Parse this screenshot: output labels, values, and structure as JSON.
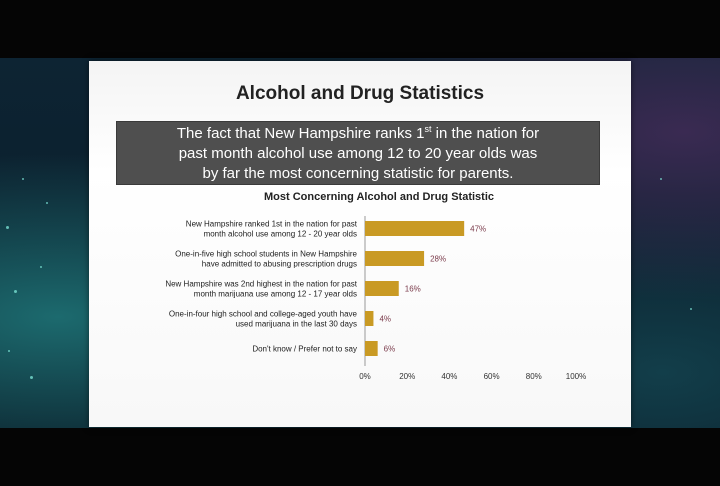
{
  "slide": {
    "title": "Alcohol and Drug Statistics",
    "callout": {
      "part1": "The fact that New Hampshire ranks 1",
      "superscript": "st",
      "part2": " in the nation for",
      "line2": "past month alcohol use among 12 to 20 year olds was",
      "line3": "by far the most concerning statistic for parents."
    }
  },
  "chart_data": {
    "type": "bar",
    "orientation": "horizontal",
    "title": "Most Concerning Alcohol and Drug Statistic",
    "categories": [
      [
        "New Hampshire ranked 1st in the nation for past",
        "month alcohol use among 12 - 20 year olds"
      ],
      [
        "One-in-five high school students in New Hampshire",
        "have admitted to abusing prescription drugs"
      ],
      [
        "New Hampshire was 2nd highest in the nation for past",
        "month marijuana use among 12 - 17 year olds"
      ],
      [
        "One-in-four high school and college-aged youth have",
        "used marijuana in the last 30 days"
      ],
      [
        "Don't know / Prefer not to say"
      ]
    ],
    "values": [
      47,
      28,
      16,
      4,
      6
    ],
    "value_labels": [
      "47%",
      "28%",
      "16%",
      "4%",
      "6%"
    ],
    "xlim": [
      0,
      100
    ],
    "xticks": [
      "0%",
      "20%",
      "40%",
      "60%",
      "80%",
      "100%"
    ],
    "bar_color": "#c99a24",
    "value_label_color": "#7a3a4a",
    "grid": false
  }
}
